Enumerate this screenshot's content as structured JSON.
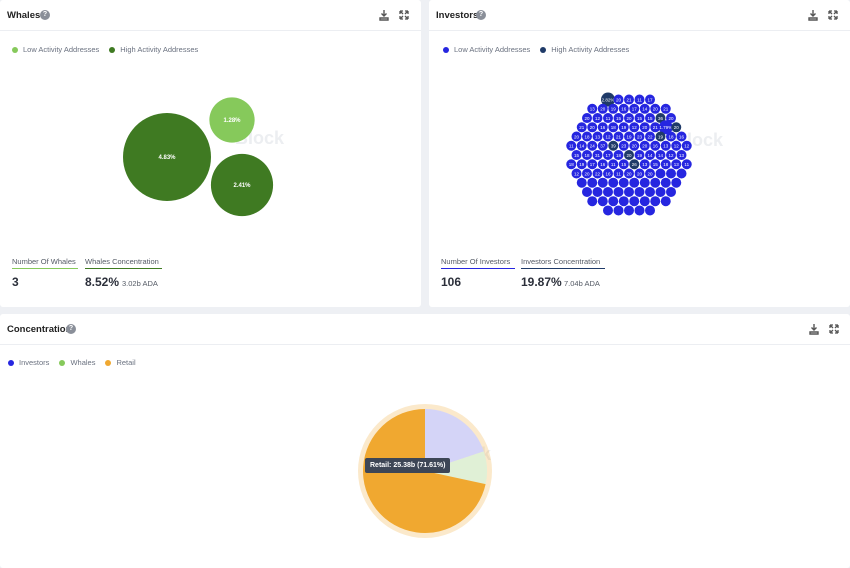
{
  "whales": {
    "title": "Whales",
    "legend": [
      {
        "label": "Low Activity Addresses",
        "color": "#86c95b"
      },
      {
        "label": "High Activity Addresses",
        "color": "#3f7a22"
      }
    ],
    "bubbles": [
      {
        "label": "4.83%",
        "value": 4.83,
        "activity": "high"
      },
      {
        "label": "1.28%",
        "value": 1.28,
        "activity": "low"
      },
      {
        "label": "2.41%",
        "value": 2.41,
        "activity": "high"
      }
    ],
    "stats": {
      "count_label": "Number Of Whales",
      "count_value": "3",
      "concentration_label": "Whales Concentration",
      "concentration_value": "8.52%",
      "concentration_amount": "3.02b ADA"
    },
    "watermark": "Block"
  },
  "investors": {
    "title": "Investors",
    "legend": [
      {
        "label": "Low Activity Addresses",
        "color": "#2626e0"
      },
      {
        "label": "High Activity Addresses",
        "color": "#1f3a68"
      }
    ],
    "bubble_labels": [
      "2.82%",
      "20",
      "21",
      "11",
      "17",
      "13",
      "20",
      "19",
      "16",
      "17",
      "14",
      "20",
      "21",
      "20",
      "12",
      "11",
      "15",
      "20",
      "15",
      "15",
      "36",
      "20",
      "21",
      "20",
      "16",
      "18",
      "19",
      "12",
      "20",
      "21",
      "1.79%",
      "20",
      "20",
      "18",
      "13",
      "12",
      "21",
      "19",
      "23",
      "22",
      "19",
      "18",
      "16",
      "11",
      "14",
      "24",
      "37",
      "39",
      "23",
      "20",
      "20",
      "16",
      "13",
      "12",
      "12",
      "15",
      "18",
      "31",
      "17",
      "18",
      "20",
      "19",
      "14",
      "14",
      "12",
      "13",
      "18",
      "19",
      "17",
      "16",
      "11",
      "15",
      "26",
      "13",
      "15",
      "18",
      "13",
      "11",
      "12",
      "20",
      "22",
      "16",
      "11",
      "20",
      "20",
      "20"
    ],
    "stats": {
      "count_label": "Number Of Investors",
      "count_value": "106",
      "concentration_label": "Investors Concentration",
      "concentration_value": "19.87%",
      "concentration_amount": "7.04b ADA"
    },
    "watermark": "Block"
  },
  "concentration": {
    "title": "Concentration",
    "legend": [
      {
        "label": "Investors",
        "color": "#2626e0"
      },
      {
        "label": "Whales",
        "color": "#86c95b"
      },
      {
        "label": "Retail",
        "color": "#f0a830"
      }
    ],
    "tooltip": "Retail: 25.38b (71.61%)",
    "watermark": "eBlock"
  },
  "chart_data": [
    {
      "type": "scatter",
      "title": "Whales",
      "series": [
        {
          "name": "High Activity Addresses",
          "values": [
            4.83,
            2.41
          ]
        },
        {
          "name": "Low Activity Addresses",
          "values": [
            1.28
          ]
        }
      ]
    },
    {
      "type": "pie",
      "title": "Concentration",
      "categories": [
        "Investors",
        "Whales",
        "Retail"
      ],
      "values": [
        19.87,
        8.52,
        71.61
      ]
    }
  ],
  "icons": {
    "download": "download-icon",
    "expand": "expand-icon",
    "help": "help-icon"
  }
}
